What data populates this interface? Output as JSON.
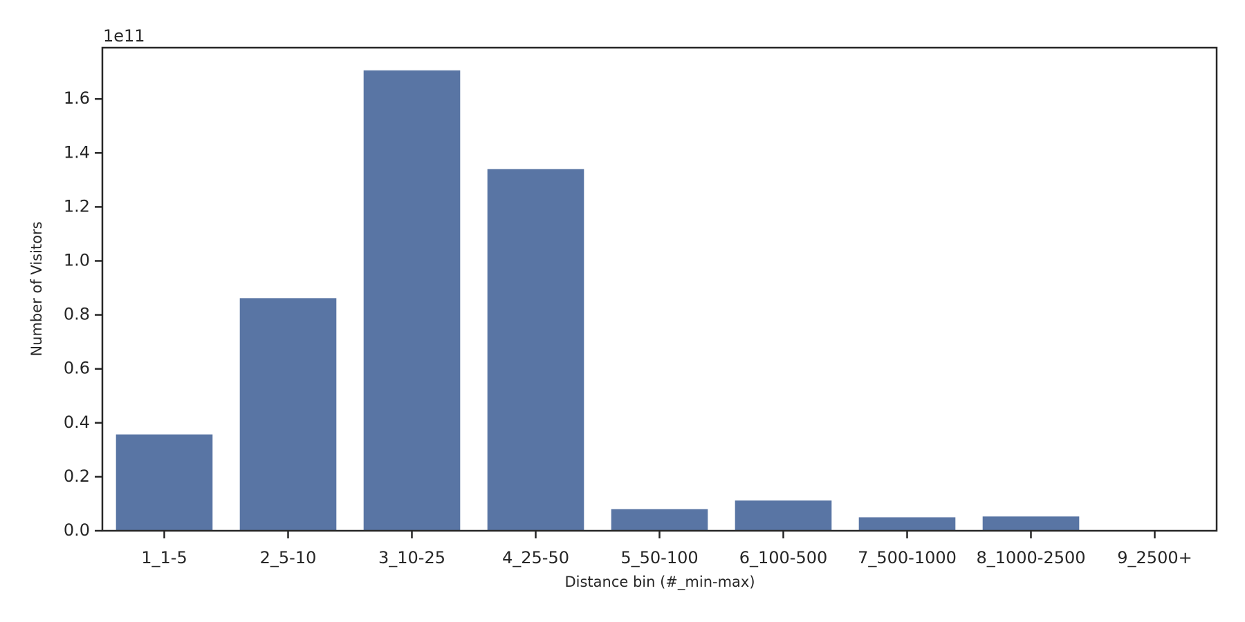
{
  "chart_data": {
    "type": "bar",
    "x_label": "Distance bin (#_min-max)",
    "y_label": "Number of Visitors",
    "y_offset_label": "1e11",
    "categories": [
      "1_1-5",
      "2_5-10",
      "3_10-25",
      "4_25-50",
      "5_50-100",
      "6_100-500",
      "7_500-1000",
      "8_1000-2500",
      "9_2500+"
    ],
    "values": [
      0.357,
      0.862,
      1.706,
      1.34,
      0.08,
      0.112,
      0.05,
      0.053,
      0
    ],
    "color": "#5975a4",
    "ylim": [
      0,
      1.79
    ],
    "yticks": [
      {
        "value": 0,
        "label": "0.0"
      },
      0.2,
      0.4,
      0.6,
      0.8,
      {
        "value": 1,
        "label": "1.0"
      },
      1.2,
      1.4,
      1.6
    ],
    "grid": false
  }
}
